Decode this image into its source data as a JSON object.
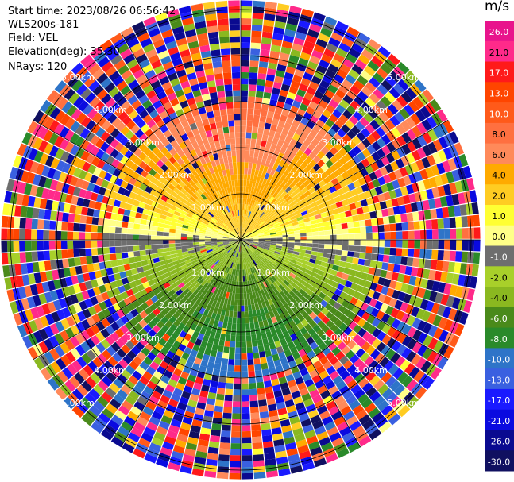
{
  "header": {
    "start_time": "Start time: 2023/08/26 06:56:42",
    "instrument": "WLS200s-181",
    "field": "Field: VEL",
    "elevation": "Elevation(deg): 35.30",
    "nrays": "NRays: 120"
  },
  "chart_data": {
    "type": "heatmap",
    "projection": "polar PPI",
    "ray_count": 120,
    "range_labels": [
      "1.00km",
      "2.00km",
      "3.00km",
      "4.00km",
      "5.00km"
    ],
    "range_rings": [
      1,
      2,
      3,
      4,
      5
    ],
    "max_range_km": 5.2,
    "bearing_lines_deg": [
      0,
      30,
      60,
      90,
      120,
      150,
      180,
      210,
      240,
      270,
      300,
      330
    ],
    "colorbar": {
      "title": "m/s",
      "ticks": [
        "26.0",
        "21.0",
        "17.0",
        "13.0",
        "10.0",
        "8.0",
        "6.0",
        "4.0",
        "2.0",
        "1.0",
        "0.0",
        "-1.0",
        "-2.0",
        "-4.0",
        "-6.0",
        "-8.0",
        "-10.0",
        "-13.0",
        "-17.0",
        "-21.0",
        "-26.0",
        "-30.0"
      ],
      "colors": [
        "#e8148c",
        "#ff2a8a",
        "#ff1a1a",
        "#ff4500",
        "#ff5a1a",
        "#ff7040",
        "#ff8a5a",
        "#ffaa00",
        "#ffcc22",
        "#ffff33",
        "#ffff88",
        "#6e6e6e",
        "#a8d02a",
        "#8ab820",
        "#4a8a1a",
        "#2a8a2a",
        "#2e74c8",
        "#3a60e0",
        "#1a1aff",
        "#0a0ae0",
        "#0a0a90",
        "#101060"
      ]
    }
  }
}
